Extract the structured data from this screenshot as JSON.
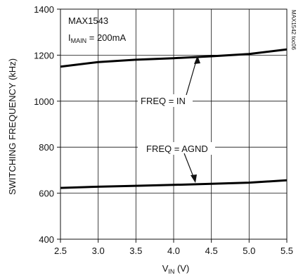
{
  "chart_data": {
    "type": "line",
    "x_label": {
      "main": "V",
      "sub": "IN",
      "suffix": " (V)"
    },
    "y_label": "SWITCHING FREQUENCY (kHz)",
    "xlim": [
      2.5,
      5.5
    ],
    "ylim": [
      400,
      1400
    ],
    "x_ticks": [
      2.5,
      3.0,
      3.5,
      4.0,
      4.5,
      5.0,
      5.5
    ],
    "x_tick_labels": [
      "2.5",
      "3.0",
      "3.5",
      "4.0",
      "4.5",
      "5.0",
      "5.5"
    ],
    "y_ticks": [
      400,
      600,
      800,
      1000,
      1200,
      1400
    ],
    "y_tick_labels": [
      "400",
      "600",
      "800",
      "1000",
      "1200",
      "1400"
    ],
    "grid": true,
    "series": [
      {
        "name": "FREQ = IN",
        "x": [
          2.5,
          3.0,
          3.5,
          4.0,
          4.5,
          5.0,
          5.5
        ],
        "y": [
          1150,
          1170,
          1180,
          1187,
          1195,
          1205,
          1225
        ]
      },
      {
        "name": "FREQ = AGND",
        "x": [
          2.5,
          3.0,
          3.5,
          4.0,
          4.5,
          5.0,
          5.5
        ],
        "y": [
          623,
          628,
          632,
          636,
          641,
          646,
          656
        ]
      }
    ],
    "annotations": {
      "part": "MAX1543",
      "condition": {
        "main": "I",
        "sub": "MAIN",
        "suffix": " = 200mA"
      },
      "figure_id": "MAX1542 toc06"
    }
  }
}
